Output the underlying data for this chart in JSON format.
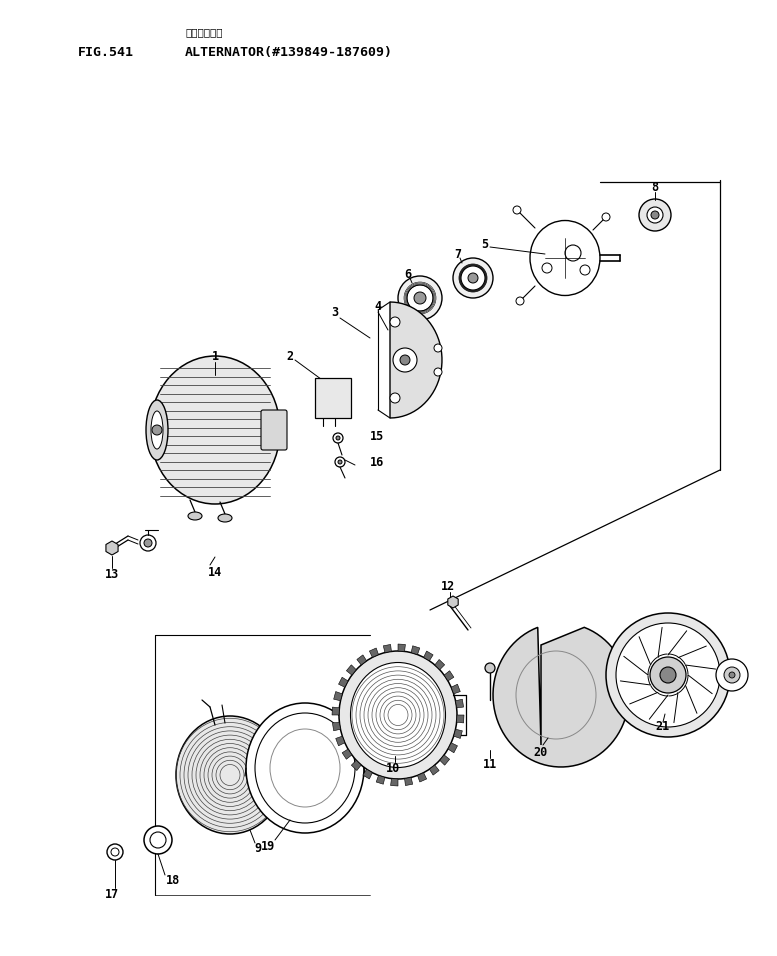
{
  "title_japanese": "オルタネータ",
  "title_english": "ALTERNATOR(#139849-187609)",
  "fig_label": "FIG.541",
  "bg": "#ffffff",
  "lc": "#000000",
  "fw": 7.77,
  "fh": 9.56,
  "dpi": 100
}
